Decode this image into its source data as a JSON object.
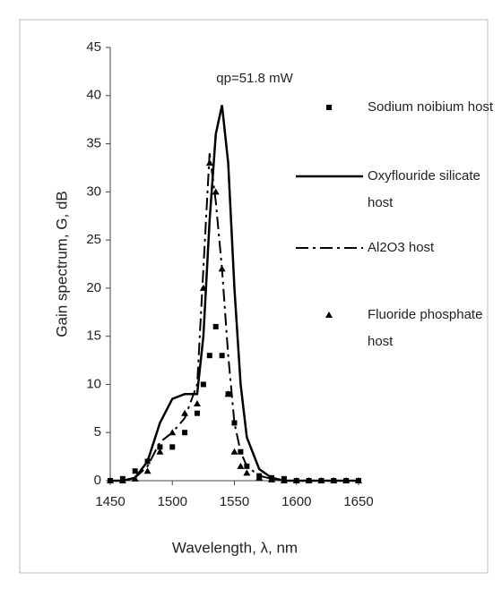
{
  "chart_data": {
    "type": "line",
    "annotation": "qp=51.8 mW",
    "x_label": "Wavelength, λ, nm",
    "y_label": "Gain spectrum, G, dB",
    "x": [
      1450,
      1460,
      1470,
      1480,
      1490,
      1500,
      1510,
      1520,
      1525,
      1530,
      1535,
      1540,
      1545,
      1550,
      1555,
      1560,
      1570,
      1580,
      1590,
      1600,
      1610,
      1620,
      1630,
      1640,
      1650
    ],
    "series": [
      {
        "name": "Sodium noibium host",
        "color": "#000000",
        "style": "square",
        "values": [
          0,
          0.2,
          1,
          2,
          3.5,
          3.5,
          5,
          7,
          10,
          13,
          16,
          13,
          9,
          6,
          3,
          1.5,
          0.5,
          0.3,
          0.2,
          0,
          0,
          0,
          0,
          0,
          0
        ]
      },
      {
        "name": "Oxyflouride silicate host",
        "color": "#000000",
        "style": "solid",
        "values": [
          0,
          0,
          0.3,
          2,
          6,
          8.5,
          9,
          9,
          15,
          27,
          36,
          39,
          33,
          20,
          10,
          4.5,
          1.2,
          0.3,
          0,
          0,
          0,
          0,
          0,
          0,
          0
        ]
      },
      {
        "name": "Al2O3 host",
        "color": "#000000",
        "style": "dashdot",
        "values": [
          0,
          0,
          0.3,
          1.5,
          4,
          5,
          6.5,
          10,
          22,
          34,
          29,
          22,
          13,
          6,
          3,
          1.5,
          0.5,
          0.2,
          0,
          0,
          0,
          0,
          0,
          0,
          0
        ]
      },
      {
        "name": "Fluoride phosphate host",
        "color": "#000000",
        "style": "triangle",
        "values": [
          0,
          0,
          0.2,
          1,
          3,
          5,
          7,
          8,
          20,
          33,
          30,
          22,
          9,
          3,
          1.5,
          0.8,
          0.3,
          0.1,
          0,
          0,
          0,
          0,
          0,
          0,
          0
        ]
      }
    ],
    "xlim": [
      1450,
      1650
    ],
    "xticks": [
      1450,
      1500,
      1550,
      1600,
      1650
    ],
    "ylim": [
      0,
      45
    ],
    "yticks": [
      0,
      5,
      10,
      15,
      20,
      25,
      30,
      35,
      40,
      45
    ],
    "grid": false
  }
}
